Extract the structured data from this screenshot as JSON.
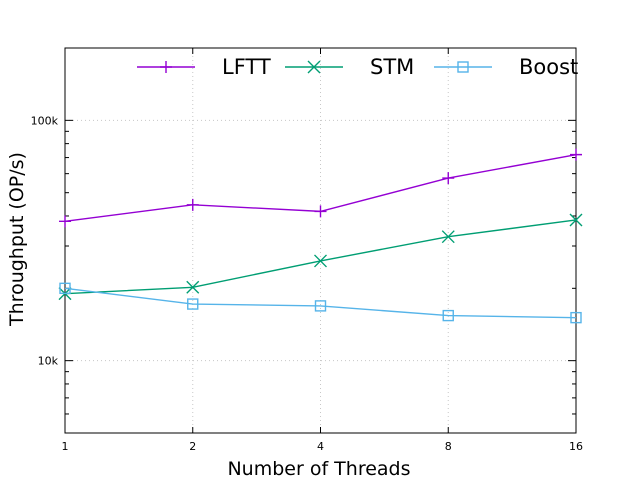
{
  "chart_data": {
    "type": "line",
    "title": "",
    "xlabel": "Number of Threads",
    "ylabel": "Throughput (OP/s)",
    "x": [
      1,
      2,
      4,
      8,
      16
    ],
    "xscale": "log2",
    "x_tick_labels": [
      "1",
      "2",
      "4",
      "8",
      "16"
    ],
    "yscale": "log",
    "ylim": [
      5000,
      200000
    ],
    "y_ticks": [
      10000,
      100000
    ],
    "y_tick_labels": [
      "10k",
      "100k"
    ],
    "grid": true,
    "legend_position": "top",
    "series": [
      {
        "name": "LFTT",
        "color": "#9400d3",
        "marker": "plus",
        "values": [
          38000,
          44500,
          41800,
          57500,
          72000
        ]
      },
      {
        "name": "STM",
        "color": "#009e73",
        "marker": "cross",
        "values": [
          19000,
          20200,
          26000,
          32800,
          38500
        ]
      },
      {
        "name": "Boost",
        "color": "#56b4e9",
        "marker": "square",
        "values": [
          20000,
          17200,
          16900,
          15400,
          15100
        ]
      }
    ]
  }
}
